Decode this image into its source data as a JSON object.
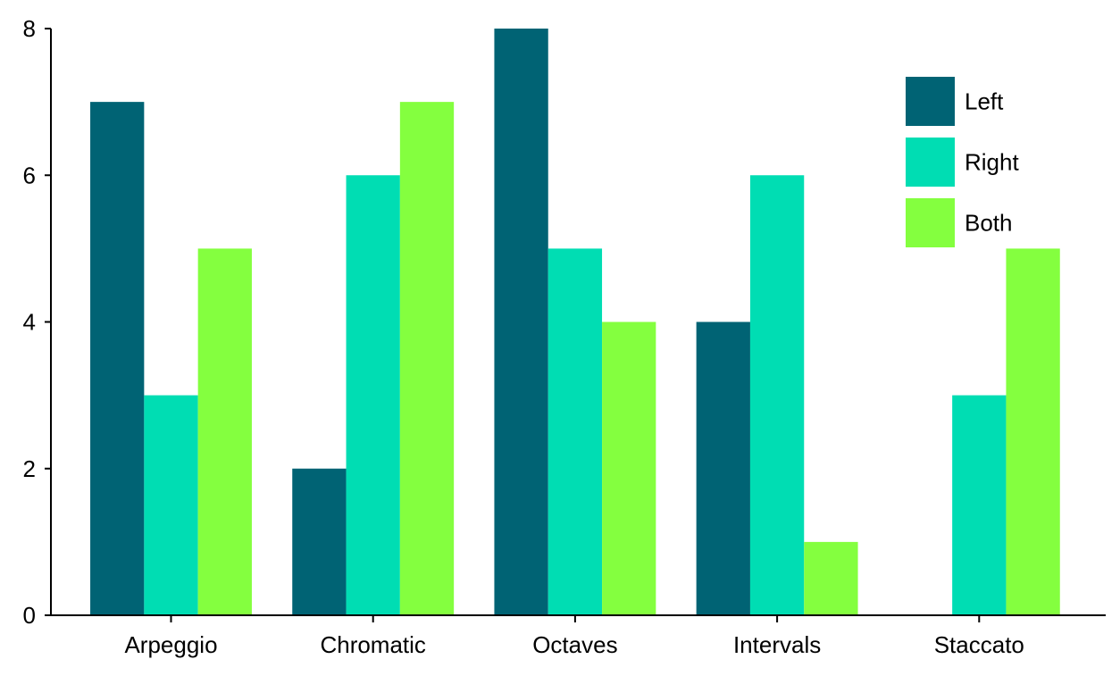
{
  "chart_data": {
    "type": "bar",
    "title": "",
    "xlabel": "",
    "ylabel": "",
    "categories": [
      "Arpeggio",
      "Chromatic",
      "Octaves",
      "Intervals",
      "Staccato"
    ],
    "series": [
      {
        "name": "Left",
        "color": "#006374",
        "values": [
          7,
          2,
          8,
          4,
          0
        ]
      },
      {
        "name": "Right",
        "color": "#00DDB3",
        "values": [
          3,
          6,
          5,
          6,
          3
        ]
      },
      {
        "name": "Both",
        "color": "#84FF3F",
        "values": [
          5,
          7,
          4,
          1,
          5
        ]
      }
    ],
    "ylim": [
      0,
      8
    ],
    "yticks": [
      "0",
      "2",
      "4",
      "6",
      "8"
    ],
    "grid": false,
    "legend_position": "top-right"
  }
}
